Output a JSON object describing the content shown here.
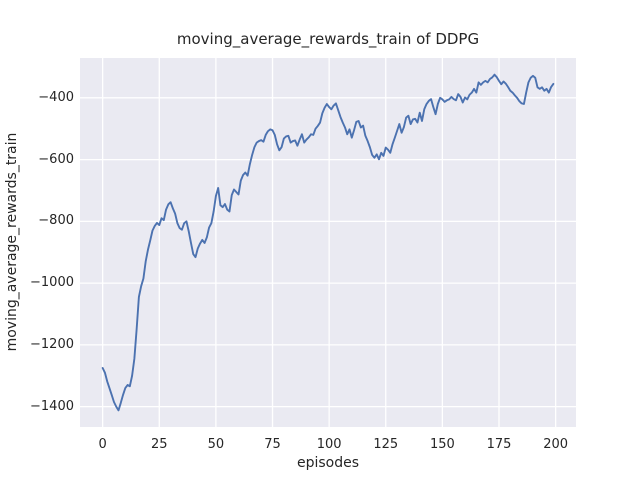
{
  "chart_data": {
    "type": "line",
    "title": "moving_average_rewards_train of DDPG",
    "xlabel": "episodes",
    "ylabel": "moving_average_rewards_train",
    "x_start": 0,
    "x_step": 1,
    "series": [
      {
        "name": "moving_average_rewards_train",
        "values": [
          -1275,
          -1290,
          -1318,
          -1340,
          -1362,
          -1385,
          -1400,
          -1412,
          -1388,
          -1362,
          -1340,
          -1330,
          -1334,
          -1300,
          -1245,
          -1150,
          -1045,
          -1010,
          -985,
          -930,
          -892,
          -862,
          -830,
          -815,
          -805,
          -812,
          -790,
          -796,
          -762,
          -745,
          -738,
          -758,
          -775,
          -806,
          -822,
          -827,
          -806,
          -800,
          -832,
          -870,
          -906,
          -916,
          -888,
          -872,
          -860,
          -870,
          -852,
          -820,
          -806,
          -768,
          -718,
          -692,
          -748,
          -754,
          -744,
          -762,
          -768,
          -715,
          -697,
          -705,
          -713,
          -668,
          -650,
          -642,
          -652,
          -615,
          -585,
          -560,
          -545,
          -540,
          -537,
          -542,
          -520,
          -508,
          -502,
          -505,
          -520,
          -550,
          -570,
          -560,
          -532,
          -525,
          -523,
          -545,
          -540,
          -538,
          -555,
          -535,
          -518,
          -545,
          -535,
          -528,
          -518,
          -520,
          -500,
          -491,
          -480,
          -450,
          -432,
          -420,
          -430,
          -437,
          -425,
          -418,
          -440,
          -462,
          -480,
          -496,
          -518,
          -502,
          -529,
          -505,
          -478,
          -475,
          -496,
          -490,
          -523,
          -540,
          -560,
          -585,
          -594,
          -583,
          -599,
          -578,
          -588,
          -561,
          -568,
          -578,
          -550,
          -529,
          -507,
          -485,
          -513,
          -495,
          -464,
          -458,
          -485,
          -470,
          -468,
          -480,
          -448,
          -475,
          -437,
          -420,
          -410,
          -404,
          -430,
          -453,
          -420,
          -400,
          -405,
          -413,
          -408,
          -405,
          -397,
          -404,
          -408,
          -388,
          -397,
          -415,
          -399,
          -405,
          -390,
          -383,
          -371,
          -383,
          -350,
          -358,
          -350,
          -345,
          -350,
          -339,
          -334,
          -325,
          -333,
          -345,
          -356,
          -347,
          -354,
          -365,
          -377,
          -383,
          -392,
          -400,
          -411,
          -418,
          -420,
          -383,
          -350,
          -335,
          -329,
          -335,
          -366,
          -371,
          -366,
          -377,
          -371,
          -383,
          -365,
          -355
        ]
      }
    ],
    "xlim": [
      -10,
      209
    ],
    "ylim": [
      -1466,
      -271
    ],
    "xticks": [
      0,
      25,
      50,
      75,
      100,
      125,
      150,
      175,
      200
    ],
    "yticks": [
      -400,
      -600,
      -800,
      -1000,
      -1200,
      -1400
    ],
    "grid": true,
    "legend": false,
    "style": {
      "line_color": "#4C72B0",
      "plot_bg": "#EAEAF2",
      "grid_color": "#FFFFFF",
      "figure_bg": "#FFFFFF",
      "text_color": "#262626"
    }
  }
}
